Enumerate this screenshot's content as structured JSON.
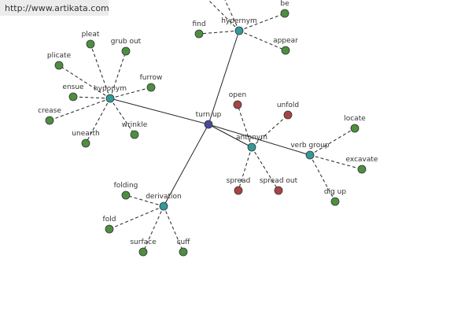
{
  "header": {
    "url": "http://www.artikata.com"
  },
  "center": {
    "label": "turn up"
  },
  "groups": [
    {
      "label": "hyponym",
      "children": [
        "pleat",
        "grub out",
        "plicate",
        "furrow",
        "ensue",
        "crease",
        "wrinkle",
        "unearth"
      ]
    },
    {
      "label": "hypernym",
      "children": [
        "find",
        "be",
        "appear"
      ]
    },
    {
      "label": "antonym",
      "children": [
        "open",
        "unfold",
        "spread",
        "spread out"
      ]
    },
    {
      "label": "verb group",
      "children": [
        "locate",
        "excavate",
        "dig up"
      ]
    },
    {
      "label": "derivation",
      "children": [
        "folding",
        "fold",
        "surface",
        "cuff"
      ]
    }
  ]
}
